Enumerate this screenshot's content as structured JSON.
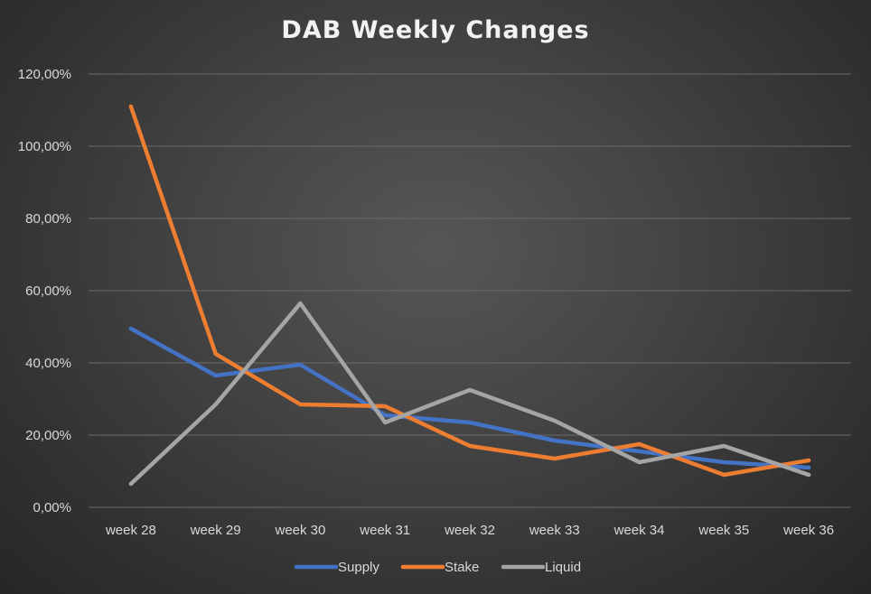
{
  "chart_data": {
    "type": "line",
    "title": "DAB Weekly Changes",
    "xlabel": "",
    "ylabel": "",
    "categories": [
      "week 28",
      "week 29",
      "week 30",
      "week 31",
      "week 32",
      "week 33",
      "week 34",
      "week 35",
      "week 36"
    ],
    "y_ticks": [
      0,
      20,
      40,
      60,
      80,
      100,
      120
    ],
    "y_tick_labels": [
      "0,00%",
      "20,00%",
      "40,00%",
      "60,00%",
      "80,00%",
      "100,00%",
      "120,00%"
    ],
    "ylim": [
      0,
      120
    ],
    "grid": true,
    "legend_position": "bottom",
    "series": [
      {
        "name": "Supply",
        "color": "#4472c4",
        "values": [
          49.5,
          36.5,
          39.5,
          25.5,
          23.5,
          18.5,
          15.5,
          12.5,
          11.0
        ]
      },
      {
        "name": "Stake",
        "color": "#ed7d31",
        "values": [
          111.0,
          42.5,
          28.5,
          28.0,
          17.0,
          13.5,
          17.5,
          9.0,
          13.0
        ]
      },
      {
        "name": "Liquid",
        "color": "#a5a5a5",
        "values": [
          6.5,
          28.5,
          56.5,
          23.5,
          32.5,
          24.0,
          12.5,
          17.0,
          9.0
        ]
      }
    ]
  }
}
